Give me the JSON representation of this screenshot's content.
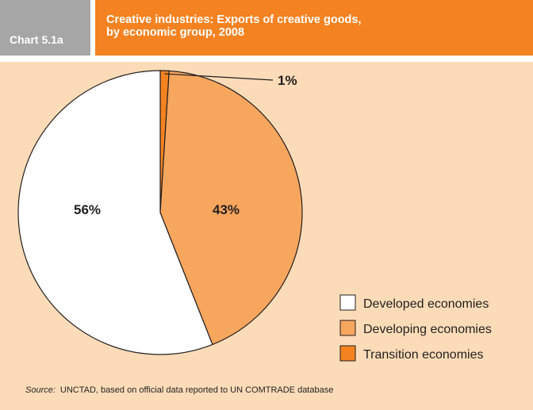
{
  "header": {
    "chart_number": "Chart 5.1a",
    "title_line1": "Creative industries: Exports of creative goods,",
    "title_line2": "by economic group, 2008"
  },
  "source": {
    "label": "Source:",
    "text": "UNCTAD, based on official data reported to UN COMTRADE database"
  },
  "chart_data": {
    "type": "pie",
    "title": "Creative industries: Exports of creative goods, by economic group, 2008",
    "categories": [
      "Developed economies",
      "Developing economies",
      "Transition economies"
    ],
    "values": [
      56,
      43,
      1
    ],
    "labels": [
      "56%",
      "43%",
      "1%"
    ],
    "colors": [
      "#ffffff",
      "#f7a65e",
      "#f58220"
    ],
    "legend_position": "bottom-right"
  },
  "colors": {
    "accent": "#f58220",
    "panel_background": "#fcdcb8",
    "chart_number_background": "#a6a6a6"
  }
}
